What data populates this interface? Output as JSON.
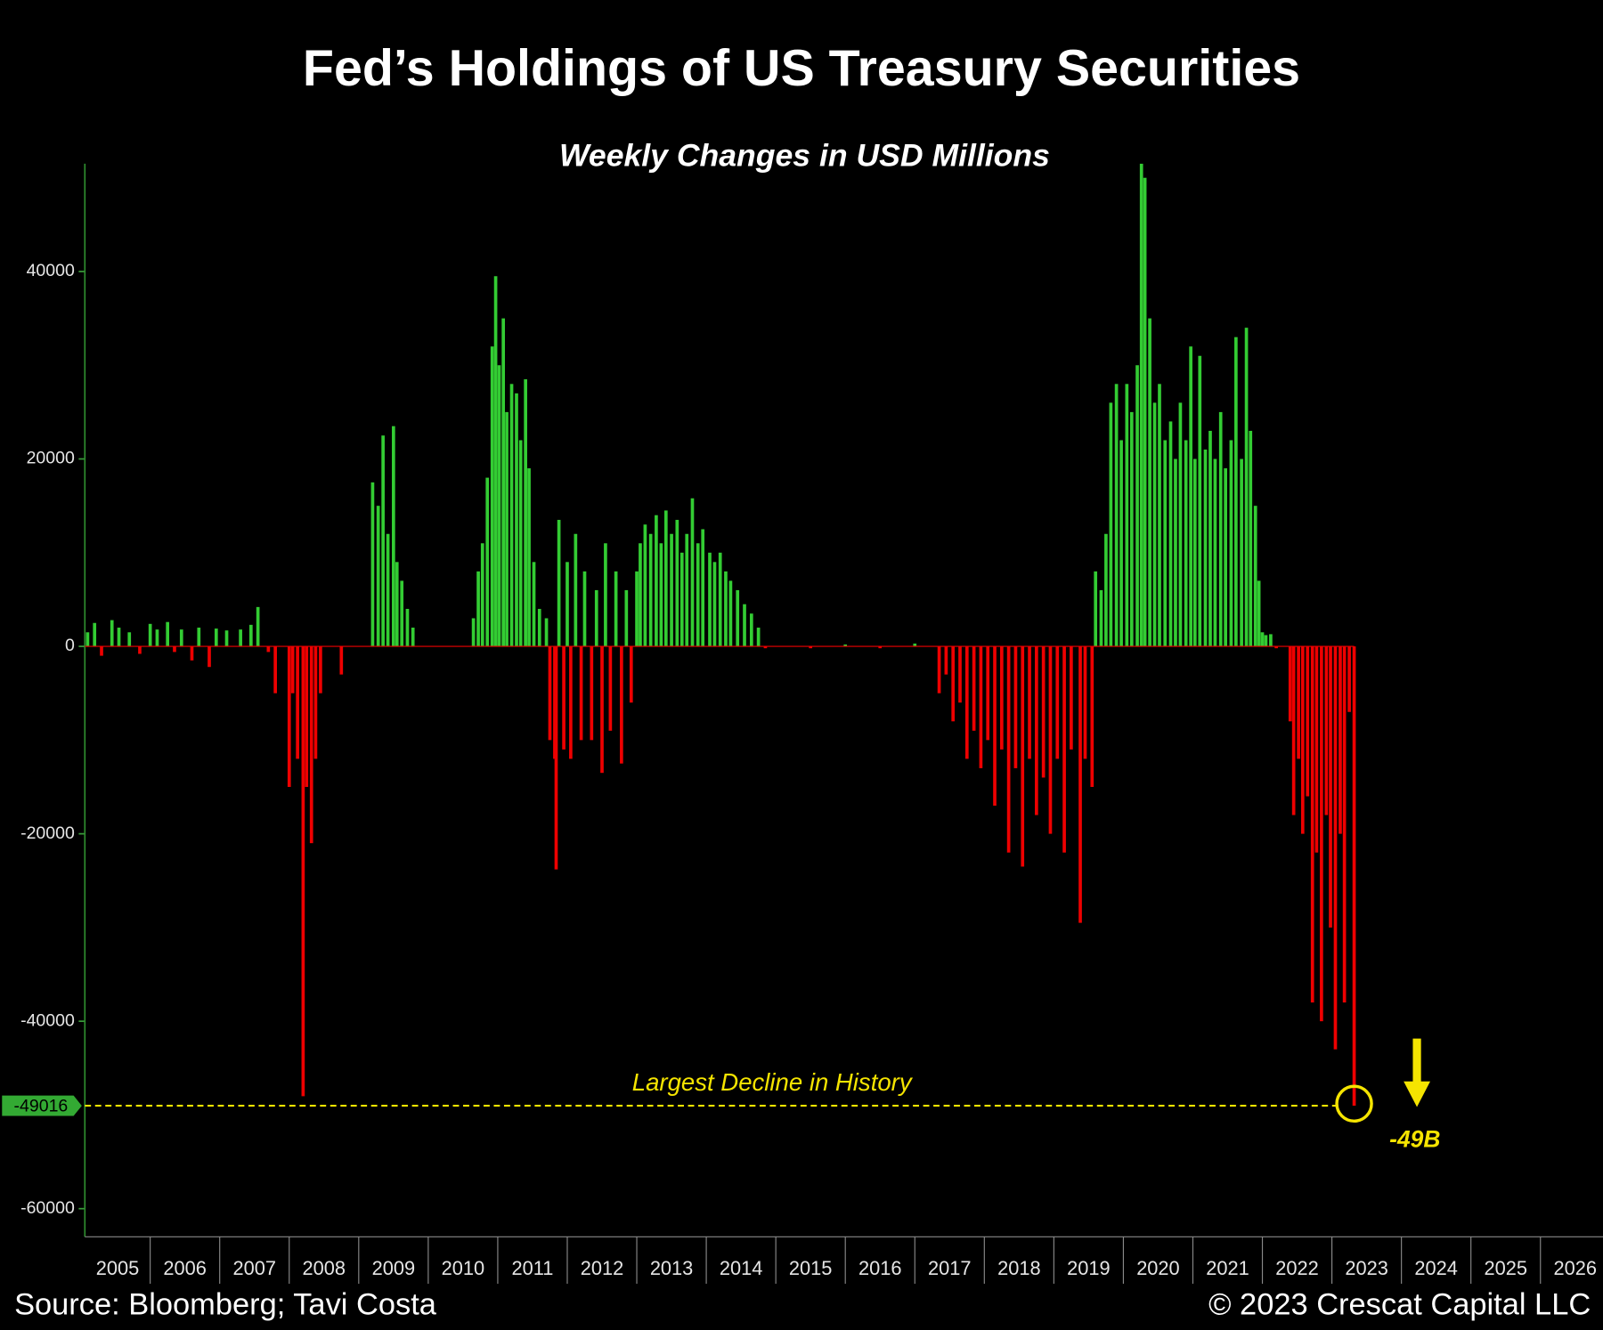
{
  "chart_data": {
    "type": "bar",
    "title": "Fed’s Holdings of US Treasury Securities",
    "subtitle": "Weekly Changes in USD Millions",
    "x": [
      2005.1,
      2005.2,
      2005.3,
      2005.45,
      2005.55,
      2005.7,
      2005.85,
      2006.0,
      2006.1,
      2006.25,
      2006.35,
      2006.45,
      2006.6,
      2006.7,
      2006.85,
      2006.95,
      2007.1,
      2007.3,
      2007.45,
      2007.55,
      2007.7,
      2007.8,
      2008.0,
      2008.05,
      2008.12,
      2008.2,
      2008.25,
      2008.32,
      2008.38,
      2008.45,
      2008.75,
      2009.2,
      2009.28,
      2009.35,
      2009.42,
      2009.5,
      2009.55,
      2009.62,
      2009.7,
      2009.78,
      2010.65,
      2010.72,
      2010.78,
      2010.85,
      2010.92,
      2010.97,
      2011.02,
      2011.08,
      2011.13,
      2011.2,
      2011.27,
      2011.33,
      2011.4,
      2011.45,
      2011.52,
      2011.6,
      2011.7,
      2011.75,
      2011.82,
      2011.84,
      2011.88,
      2011.95,
      2012.0,
      2012.05,
      2012.12,
      2012.2,
      2012.25,
      2012.35,
      2012.42,
      2012.5,
      2012.55,
      2012.62,
      2012.7,
      2012.78,
      2012.85,
      2012.92,
      2013.0,
      2013.05,
      2013.12,
      2013.2,
      2013.28,
      2013.35,
      2013.42,
      2013.5,
      2013.58,
      2013.65,
      2013.72,
      2013.8,
      2013.88,
      2013.95,
      2014.05,
      2014.12,
      2014.2,
      2014.28,
      2014.35,
      2014.45,
      2014.55,
      2014.65,
      2014.75,
      2014.85,
      2015.5,
      2016.0,
      2016.5,
      2017.0,
      2017.35,
      2017.45,
      2017.55,
      2017.65,
      2017.75,
      2017.85,
      2017.95,
      2018.05,
      2018.15,
      2018.25,
      2018.35,
      2018.45,
      2018.55,
      2018.65,
      2018.75,
      2018.85,
      2018.95,
      2019.05,
      2019.15,
      2019.25,
      2019.38,
      2019.45,
      2019.55,
      2019.6,
      2019.68,
      2019.75,
      2019.82,
      2019.9,
      2019.97,
      2020.05,
      2020.12,
      2020.2,
      2020.26,
      2020.31,
      2020.38,
      2020.45,
      2020.52,
      2020.6,
      2020.68,
      2020.75,
      2020.82,
      2020.9,
      2020.97,
      2021.03,
      2021.1,
      2021.18,
      2021.25,
      2021.32,
      2021.4,
      2021.47,
      2021.55,
      2021.62,
      2021.7,
      2021.77,
      2021.83,
      2021.9,
      2021.95,
      2022.0,
      2022.05,
      2022.12,
      2022.2,
      2022.4,
      2022.45,
      2022.52,
      2022.58,
      2022.65,
      2022.72,
      2022.78,
      2022.85,
      2022.92,
      2022.98,
      2023.05,
      2023.12,
      2023.18,
      2023.25,
      2023.32
    ],
    "values": [
      1500,
      2500,
      -1000,
      2800,
      2000,
      1500,
      -800,
      2400,
      1800,
      2600,
      -600,
      1800,
      -1500,
      2000,
      -2200,
      1900,
      1700,
      1800,
      2300,
      4200,
      -600,
      -5000,
      -15000,
      -5000,
      -12000,
      -48000,
      -15000,
      -21000,
      -12000,
      -5000,
      -3000,
      17500,
      15000,
      22500,
      12000,
      23500,
      9000,
      7000,
      4000,
      2000,
      3000,
      8000,
      11000,
      18000,
      32000,
      39500,
      30000,
      35000,
      25000,
      28000,
      27000,
      22000,
      28500,
      19000,
      9000,
      4000,
      3000,
      -10000,
      -12000,
      -23800,
      13500,
      -11000,
      9000,
      -12000,
      12000,
      -10000,
      8000,
      -10000,
      6000,
      -13500,
      11000,
      -9000,
      8000,
      -12500,
      6000,
      -6000,
      8000,
      11000,
      13000,
      12000,
      14000,
      11000,
      14500,
      12000,
      13500,
      10000,
      12000,
      15800,
      11000,
      12500,
      10000,
      9000,
      10000,
      8000,
      7000,
      6000,
      4500,
      3500,
      2000,
      -200,
      -200,
      200,
      -200,
      300,
      -5000,
      -3000,
      -8000,
      -6000,
      -12000,
      -9000,
      -13000,
      -10000,
      -17000,
      -11000,
      -22000,
      -13000,
      -23500,
      -12000,
      -18000,
      -14000,
      -20000,
      -12000,
      -22000,
      -11000,
      -29500,
      -12000,
      -15000,
      8000,
      6000,
      12000,
      26000,
      28000,
      22000,
      28000,
      25000,
      30000,
      51500,
      50000,
      35000,
      26000,
      28000,
      22000,
      24000,
      20000,
      26000,
      22000,
      32000,
      20000,
      31000,
      21000,
      23000,
      20000,
      25000,
      19000,
      22000,
      33000,
      20000,
      34000,
      23000,
      15000,
      7000,
      1500,
      1200,
      1300,
      -200,
      -8000,
      -18000,
      -12000,
      -20000,
      -16000,
      -38000,
      -22000,
      -40000,
      -18000,
      -30000,
      -43000,
      -20000,
      -38000,
      -7000,
      -49016
    ],
    "colors": {
      "positive": "#33cc33",
      "negative": "#ee0000"
    },
    "xlim": [
      2005.06,
      2026.9
    ],
    "xticks": [
      2005,
      2006,
      2007,
      2008,
      2009,
      2010,
      2011,
      2012,
      2013,
      2014,
      2015,
      2016,
      2017,
      2018,
      2019,
      2020,
      2021,
      2022,
      2023,
      2024,
      2025,
      2026
    ],
    "ylim": [
      -63000,
      51500
    ],
    "yticks": [
      40000,
      20000,
      0,
      -20000,
      -40000,
      -60000
    ],
    "reference_line": -49016,
    "annotations": [
      "Largest Decline in History",
      "-49B"
    ],
    "source": "Source: Bloomberg; Tavi Costa",
    "credit": "© 2023 Crescat Capital LLC"
  }
}
